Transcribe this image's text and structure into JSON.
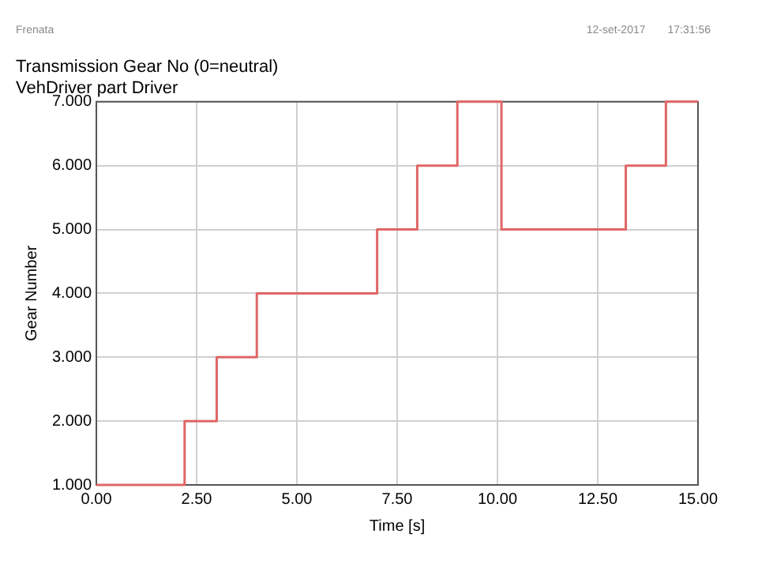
{
  "chart_data": {
    "type": "step",
    "title": "Transmission Gear No (0=neutral)",
    "subtitle": "VehDriver part Driver",
    "xlabel": "Time [s]",
    "ylabel": "Gear Number",
    "annotations": [
      "Frenata",
      "12-set-2017",
      "17:31:56"
    ],
    "x": [
      0,
      2.2,
      3,
      4,
      7,
      8,
      9,
      10.1,
      13.2,
      14.2,
      15
    ],
    "series": [
      {
        "color": "#e06666",
        "values": [
          1,
          2,
          3,
          4,
          5,
          6,
          7,
          5,
          6,
          7,
          7
        ]
      }
    ],
    "xlim": [
      0,
      15
    ],
    "xticks": [
      {
        "value": 0,
        "label": "0.00"
      },
      {
        "value": 2.5,
        "label": "2.50"
      },
      {
        "value": 5,
        "label": "5.00"
      },
      {
        "value": 7.5,
        "label": "7.50"
      },
      {
        "value": 10,
        "label": "10.00"
      },
      {
        "value": 12.5,
        "label": "12.50"
      },
      {
        "value": 15,
        "label": "15.00"
      }
    ],
    "ylim": [
      1,
      7
    ],
    "yticks": [
      {
        "value": 1,
        "label": "1.000"
      },
      {
        "value": 2,
        "label": "2.000"
      },
      {
        "value": 3,
        "label": "3.000"
      },
      {
        "value": 4,
        "label": "4.000"
      },
      {
        "value": 5,
        "label": "5.000"
      },
      {
        "value": 6,
        "label": "6.000"
      },
      {
        "value": 7,
        "label": "7.000"
      }
    ],
    "grid": true,
    "legend": false,
    "marker": "none",
    "line_style": "solid"
  }
}
